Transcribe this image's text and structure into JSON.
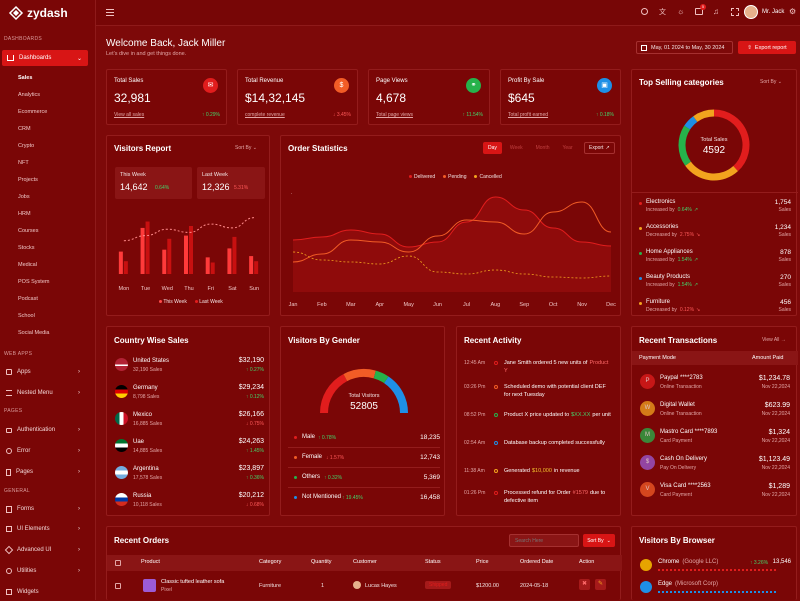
{
  "app": {
    "name": "zydash"
  },
  "sidebar": {
    "section_dashboards": "DASHBOARDS",
    "dashboards_label": "Dashboards",
    "items": [
      "Sales",
      "Analytics",
      "Ecommerce",
      "CRM",
      "Crypto",
      "NFT",
      "Projects",
      "Jobs",
      "HRM",
      "Courses",
      "Stocks",
      "Medical",
      "POS System",
      "Podcast",
      "School",
      "Social Media"
    ],
    "section_webapps": "WEB APPS",
    "apps": "Apps",
    "nested_menu": "Nested Menu",
    "section_pages": "PAGES",
    "authentication": "Authentication",
    "error": "Error",
    "pages": "Pages",
    "section_general": "GENERAL",
    "forms": "Forms",
    "ui_elements": "UI Elements",
    "advanced_ui": "Advanced UI",
    "utilities": "Utilities",
    "widgets": "Widgets"
  },
  "topbar": {
    "user_name": "Mr. Jack",
    "cart_badge": "5"
  },
  "header": {
    "welcome": "Welcome Back, Jack Miller",
    "subtitle": "Let's dive in and get things done.",
    "date_range": "May, 01 2024 to May, 30 2024",
    "export_label": "Export report"
  },
  "stats": [
    {
      "title": "Total Sales",
      "value": "32,981",
      "link": "View all sales",
      "change": "0.29%",
      "color": "#e11d1d"
    },
    {
      "title": "Total Revenue",
      "value": "$14,32,145",
      "link": "complete revenue",
      "change": "3.45%",
      "color": "#f25c26"
    },
    {
      "title": "Page Views",
      "value": "4,678",
      "link": "Total page views",
      "change": "11.54%",
      "color": "#26b24b"
    },
    {
      "title": "Profit By Sale",
      "value": "$645",
      "link": "Total profit earned",
      "change": "0.18%",
      "color": "#1e8fe6"
    }
  ],
  "visitors_report": {
    "title": "Visitors Report",
    "sort_label": "Sort By",
    "this_week_label": "This Week",
    "this_week_value": "14,642",
    "this_week_change": "0.64%",
    "last_week_label": "Last Week",
    "last_week_value": "12,326",
    "last_week_change": "5.31%",
    "legend_this": "This Week",
    "legend_last": "Last Week"
  },
  "order_stats": {
    "title": "Order Statistics",
    "tabs": [
      "Day",
      "Week",
      "Month",
      "Year"
    ],
    "export_label": "Export",
    "legend": [
      "Delivered",
      "Pending",
      "Cancelled"
    ]
  },
  "top_categories": {
    "title": "Top Selling categories",
    "sort_label": "Sort By",
    "center_label": "Total Sales",
    "center_value": "4592",
    "items": [
      {
        "name": "Electronics",
        "status": "Increased by",
        "change": "0.64%",
        "value": "1,754",
        "unit": "Sales",
        "color": "#e11d1d",
        "dir": "up"
      },
      {
        "name": "Accessories",
        "status": "Decreased by",
        "change": "2.75%",
        "value": "1,234",
        "unit": "Sales",
        "color": "#f2a31e",
        "dir": "down"
      },
      {
        "name": "Home Appliances",
        "status": "Increased by",
        "change": "1.54%",
        "value": "878",
        "unit": "Sales",
        "color": "#26b24b",
        "dir": "up"
      },
      {
        "name": "Beauty Products",
        "status": "Increased by",
        "change": "1.54%",
        "value": "270",
        "unit": "Sales",
        "color": "#1e8fe6",
        "dir": "up"
      },
      {
        "name": "Furniture",
        "status": "Decreased by",
        "change": "0.12%",
        "value": "456",
        "unit": "Sales",
        "color": "#f2a31e",
        "dir": "down"
      }
    ]
  },
  "country_sales": {
    "title": "Country Wise Sales",
    "items": [
      {
        "name": "United States",
        "sales": "32,190 Sales",
        "value": "$32,190",
        "change": "0.27%",
        "dir": "up"
      },
      {
        "name": "Germany",
        "sales": "8,798 Sales",
        "value": "$29,234",
        "change": "0.12%",
        "dir": "up"
      },
      {
        "name": "Mexico",
        "sales": "16,885 Sales",
        "value": "$26,166",
        "change": "0.75%",
        "dir": "down"
      },
      {
        "name": "Uae",
        "sales": "14,885 Sales",
        "value": "$24,263",
        "change": "1.45%",
        "dir": "up"
      },
      {
        "name": "Argentina",
        "sales": "17,578 Sales",
        "value": "$23,897",
        "change": "0.36%",
        "dir": "up"
      },
      {
        "name": "Russia",
        "sales": "10,118 Sales",
        "value": "$20,212",
        "change": "0.68%",
        "dir": "down"
      }
    ]
  },
  "gender": {
    "title": "Visitors By Gender",
    "center_label": "Total Visitors",
    "center_value": "52805",
    "items": [
      {
        "name": "Male",
        "change": "0.78%",
        "value": "18,235",
        "color": "#e11d1d",
        "dir": "up"
      },
      {
        "name": "Female",
        "change": "1.57%",
        "value": "12,743",
        "color": "#f25c26",
        "dir": "down"
      },
      {
        "name": "Others",
        "change": "0.32%",
        "value": "5,369",
        "color": "#26b24b",
        "dir": "up"
      },
      {
        "name": "Not Mentioned",
        "change": "19.45%",
        "value": "16,458",
        "color": "#1e8fe6",
        "dir": "up"
      }
    ]
  },
  "activity": {
    "title": "Recent Activity",
    "items": [
      {
        "time": "12:45 Am",
        "text": "Jane Smith ordered 5 new units of",
        "highlight": "Product Y",
        "color": "#e11d1d",
        "hcolor": "#ff6a6a"
      },
      {
        "time": "03:26 Pm",
        "text": "Scheduled demo with potential client DEF for next Tuesday",
        "highlight": "",
        "color": "#f25c26",
        "hcolor": ""
      },
      {
        "time": "08:52 Pm",
        "text": "Product X price updated to",
        "highlight": "$XX.XX",
        "text2": "per unit",
        "color": "#26b24b",
        "hcolor": "#43d46a"
      },
      {
        "time": "02:54 Am",
        "text": "Database backup completed successfully",
        "highlight": "",
        "color": "#1e8fe6",
        "hcolor": ""
      },
      {
        "time": "11:38 Am",
        "text": "Generated",
        "highlight": "$10,000",
        "text2": "in revenue",
        "color": "#f2a31e",
        "hcolor": "#f2c12e"
      },
      {
        "time": "01:26 Pm",
        "text": "Processed refund for Order",
        "highlight": "#1579",
        "text2": "due to defective item",
        "color": "#e11d1d",
        "hcolor": "#ff6a6a"
      }
    ]
  },
  "transactions": {
    "title": "Recent Transactions",
    "view_all": "View All",
    "col_mode": "Payment Mode",
    "col_amount": "Amount Paid",
    "items": [
      {
        "name": "Paypal ****2783",
        "type": "Online Transaction",
        "amount": "$1,234.78",
        "date": "Nov 22,2024",
        "icon": "P"
      },
      {
        "name": "Digital Wallet",
        "type": "Online Transaction",
        "amount": "$623.99",
        "date": "Nov 22,2024",
        "icon": "W"
      },
      {
        "name": "Mastro Card ****7893",
        "type": "Card Payment",
        "amount": "$1,324",
        "date": "Nov 22,2024",
        "icon": "M"
      },
      {
        "name": "Cash On Delivery",
        "type": "Pay On Delivery",
        "amount": "$1,123.49",
        "date": "Nov 22,2024",
        "icon": "$"
      },
      {
        "name": "Visa Card ****2563",
        "type": "Card Payment",
        "amount": "$1,289",
        "date": "Nov 22,2024",
        "icon": "V"
      }
    ]
  },
  "orders": {
    "title": "Recent Orders",
    "search_placeholder": "Search Here",
    "sort_label": "Sort By",
    "columns": [
      "Product",
      "Category",
      "Quantity",
      "Customer",
      "Status",
      "Price",
      "Ordered Date",
      "Action"
    ],
    "row": {
      "product": "Classic tufted leather sofa",
      "brand": "Pixel",
      "category": "Furniture",
      "quantity": "1",
      "customer": "Lucas Hayes",
      "status": "Shipped",
      "price": "$1200.00",
      "date": "2024-05-18"
    }
  },
  "browser": {
    "title": "Visitors By Browser",
    "items": [
      {
        "name": "Chrome",
        "company": "(Google LLC)",
        "change": "3.26%",
        "value": "13,546"
      },
      {
        "name": "Edge",
        "company": "(Microsoft Corp)",
        "change": "",
        "value": ""
      }
    ]
  },
  "chart_data": [
    {
      "type": "bar",
      "title": "Visitors Report",
      "categories": [
        "Mon",
        "Tue",
        "Wed",
        "Thu",
        "Fri",
        "Sat",
        "Sun"
      ],
      "series": [
        {
          "name": "This Week",
          "values": [
            35,
            72,
            38,
            60,
            26,
            40,
            28
          ]
        },
        {
          "name": "Last Week",
          "values": [
            20,
            82,
            55,
            75,
            18,
            58,
            20
          ]
        }
      ],
      "overlay_line": [
        52,
        60,
        70,
        65,
        78,
        72,
        88
      ]
    },
    {
      "type": "line",
      "title": "Order Statistics",
      "categories": [
        "Jan",
        "Feb",
        "Mar",
        "Apr",
        "May",
        "Jun",
        "Jul",
        "Aug",
        "Sep",
        "Oct",
        "Nov",
        "Dec"
      ],
      "series": [
        {
          "name": "Delivered",
          "values": [
            52,
            55,
            62,
            58,
            45,
            50,
            70,
            95,
            82,
            64,
            50,
            46
          ]
        },
        {
          "name": "Pending",
          "values": [
            30,
            38,
            52,
            50,
            40,
            56,
            72,
            70,
            58,
            80,
            90,
            60
          ]
        },
        {
          "name": "Cancelled",
          "values": [
            40,
            32,
            30,
            28,
            36,
            20,
            18,
            22,
            18,
            15,
            14,
            16
          ]
        }
      ]
    },
    {
      "type": "pie",
      "title": "Top Selling categories",
      "categories": [
        "Electronics",
        "Accessories",
        "Home Appliances",
        "Beauty Products",
        "Furniture"
      ],
      "values": [
        1754,
        1234,
        878,
        270,
        456
      ]
    },
    {
      "type": "pie",
      "title": "Visitors By Gender",
      "categories": [
        "Male",
        "Female",
        "Others",
        "Not Mentioned"
      ],
      "values": [
        18235,
        12743,
        5369,
        16458
      ]
    }
  ]
}
